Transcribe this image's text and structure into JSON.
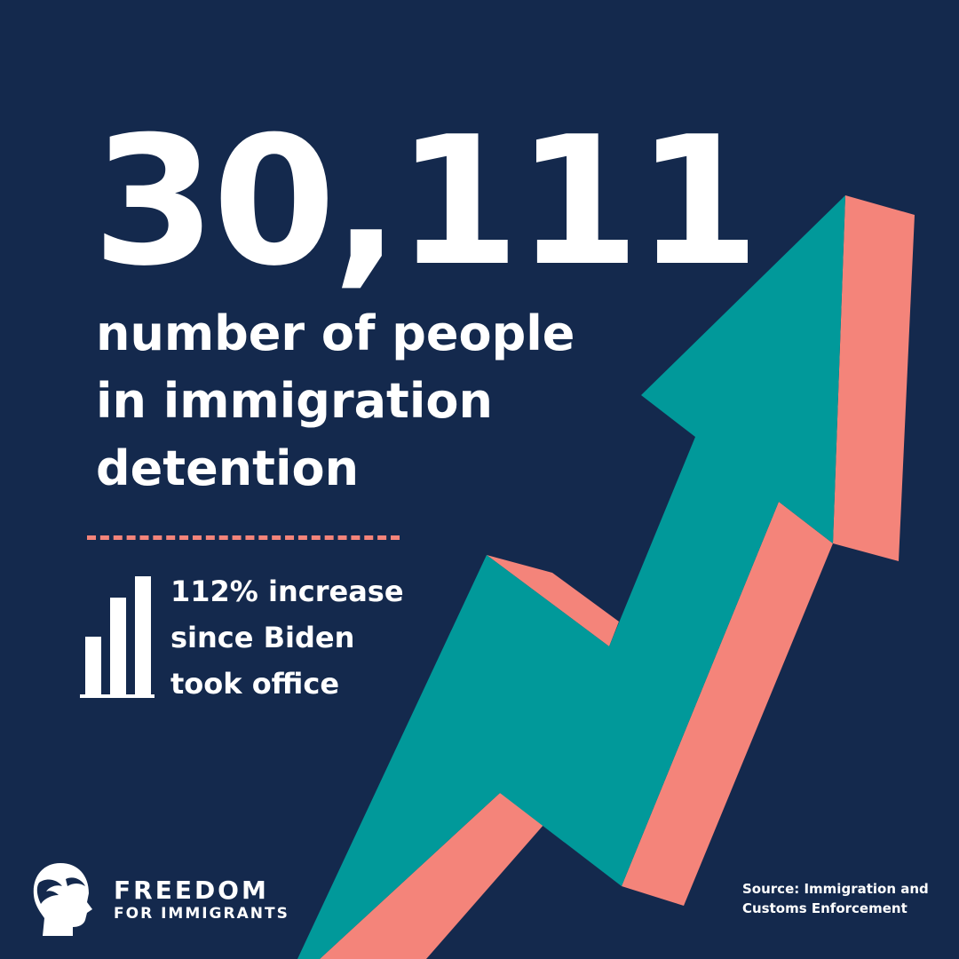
{
  "headline": {
    "number": "30,111",
    "lines": [
      "number of people",
      "in immigration",
      "detention"
    ]
  },
  "stat": {
    "lines": [
      "112% increase",
      "since Biden",
      "took office"
    ],
    "icon": "bar-chart-icon"
  },
  "brand": {
    "line1": "FREEDOM",
    "line2": "FOR IMMIGRANTS",
    "icon": "profile-head-logo-icon"
  },
  "source": {
    "lines": [
      "Source: Immigration and",
      "Customs Enforcement"
    ]
  },
  "colors": {
    "background": "#14294d",
    "arrow_face": "#01999a",
    "arrow_side": "#f4847a",
    "text": "#ffffff"
  }
}
